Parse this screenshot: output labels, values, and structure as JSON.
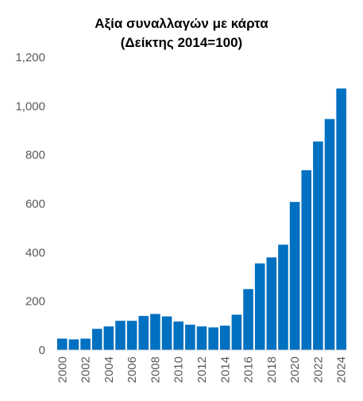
{
  "chart_data": {
    "type": "bar",
    "title_line1": "Αξία συναλλαγών με κάρτα",
    "title_line2": "(Δείκτης 2014=100)",
    "xlabel": "",
    "ylabel": "",
    "ylim": [
      0,
      1200
    ],
    "yticks": [
      0,
      200,
      400,
      600,
      800,
      1000,
      1200
    ],
    "ytick_labels": [
      "0",
      "200",
      "400",
      "600",
      "800",
      "1,000",
      "1,200"
    ],
    "categories": [
      "2000",
      "2001",
      "2002",
      "2003",
      "2004",
      "2005",
      "2006",
      "2007",
      "2008",
      "2009",
      "2010",
      "2011",
      "2012",
      "2013",
      "2014",
      "2015",
      "2016",
      "2017",
      "2018",
      "2019",
      "2020",
      "2021",
      "2022",
      "2023",
      "2024"
    ],
    "xtick_labels": [
      "2000",
      "",
      "2002",
      "",
      "2004",
      "",
      "2006",
      "",
      "2008",
      "",
      "2010",
      "",
      "2012",
      "",
      "2014",
      "",
      "2016",
      "",
      "2018",
      "",
      "2020",
      "",
      "2022",
      "",
      "2024"
    ],
    "values": [
      47,
      44,
      47,
      87,
      97,
      120,
      120,
      140,
      148,
      138,
      117,
      104,
      97,
      93,
      100,
      145,
      250,
      355,
      380,
      432,
      607,
      737,
      855,
      947,
      1072
    ],
    "grid": false,
    "legend": "none",
    "bar_color": "#0070C0"
  }
}
